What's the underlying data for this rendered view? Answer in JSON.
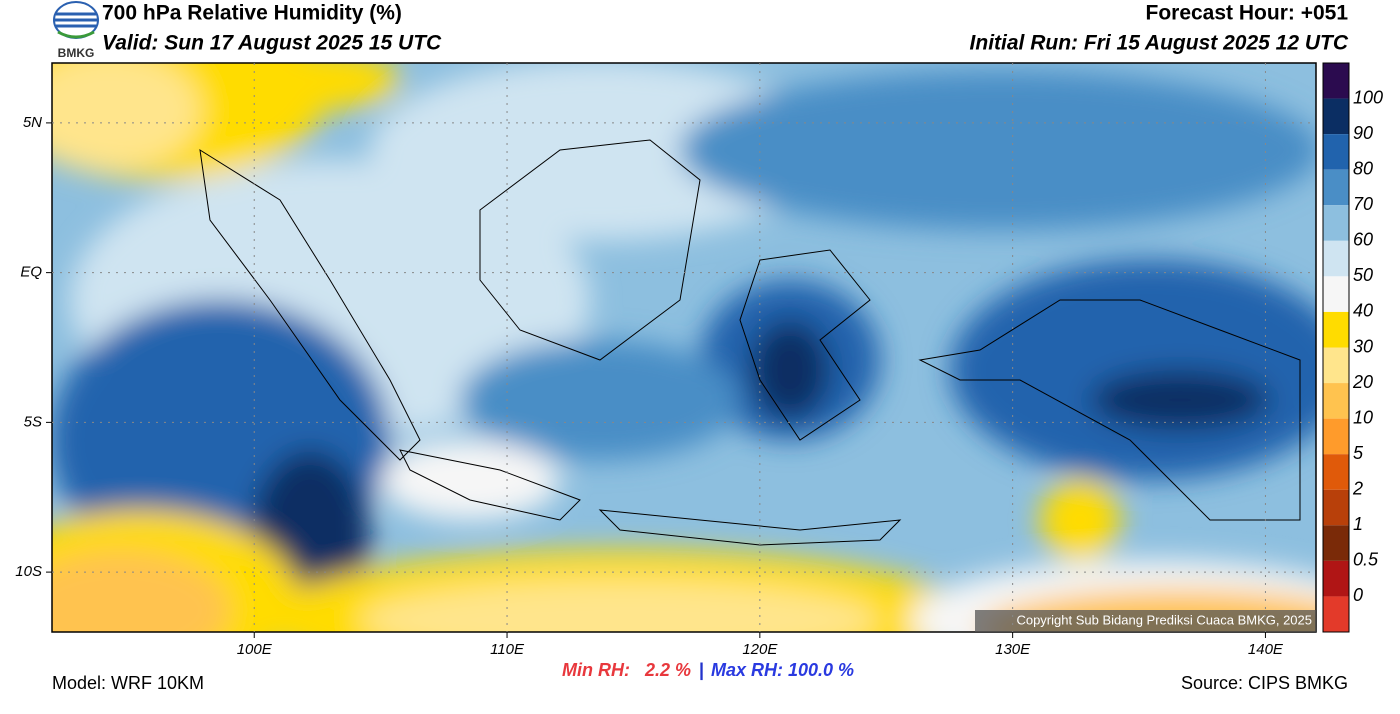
{
  "header": {
    "logo": "BMKG",
    "title": "700 hPa Relative Humidity (%)",
    "valid": "Valid: Sun 17 August 2025 15 UTC",
    "forecast_hour": "Forecast Hour: +051",
    "initial_run": "Initial Run: Fri 15 August 2025 12 UTC"
  },
  "map": {
    "xlim": [
      92,
      142
    ],
    "ylim": [
      -12,
      7
    ],
    "xticks": [
      {
        "value": 100,
        "label": "100E"
      },
      {
        "value": 110,
        "label": "110E"
      },
      {
        "value": 120,
        "label": "120E"
      },
      {
        "value": 130,
        "label": "130E"
      },
      {
        "value": 140,
        "label": "140E"
      }
    ],
    "yticks": [
      {
        "value": 5,
        "label": "5N"
      },
      {
        "value": 0,
        "label": "EQ"
      },
      {
        "value": -5,
        "label": "5S"
      },
      {
        "value": -10,
        "label": "10S"
      }
    ],
    "copyright": "Copyright Sub Bidang Prediksi Cuaca BMKG, 2025"
  },
  "colorbar": {
    "labels": [
      "100",
      "90",
      "80",
      "70",
      "60",
      "50",
      "40",
      "30",
      "20",
      "10",
      "5",
      "2",
      "1",
      "0.5",
      "0"
    ],
    "colors": [
      "#2b0b4f",
      "#0b2e63",
      "#2163ad",
      "#4a8ec6",
      "#8dbfdf",
      "#cfe4f1",
      "#f6f6f6",
      "#ffdc00",
      "#ffe58c",
      "#ffc34f",
      "#ff9b2b",
      "#e05a0a",
      "#b8400a",
      "#7a2a08",
      "#b01515",
      "#e33a2a"
    ]
  },
  "footer": {
    "model": "Model: WRF 10KM",
    "min_rh": "Min RH:   2.2 %",
    "separator": "|",
    "max_rh": "Max RH: 100.0 %",
    "source": "Source: CIPS BMKG"
  }
}
